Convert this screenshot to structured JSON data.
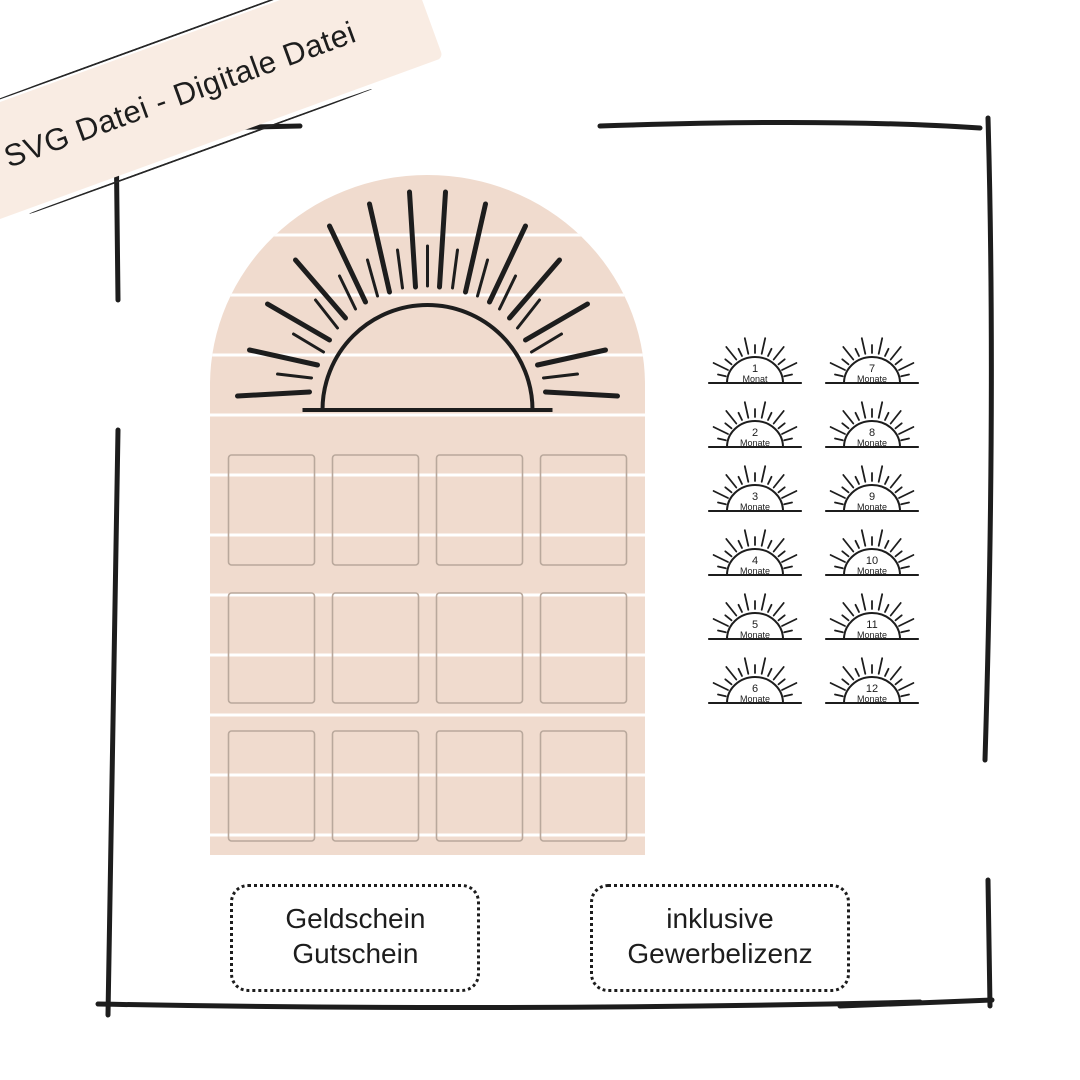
{
  "colors": {
    "bg": "#ffffff",
    "panel": "#f0dbce",
    "banner": "#f9ece3",
    "ink": "#1d1d1d",
    "slot_stroke": "#b9a89c"
  },
  "banner": {
    "text": "SVG Datei - Digitale Datei"
  },
  "pills": {
    "left_line1": "Geldschein",
    "left_line2": "Gutschein",
    "right_line1": "inklusive",
    "right_line2": "Gewerbelizenz"
  },
  "tokens": [
    {
      "num": "1",
      "label": "Monat"
    },
    {
      "num": "7",
      "label": "Monate"
    },
    {
      "num": "2",
      "label": "Monate"
    },
    {
      "num": "8",
      "label": "Monate"
    },
    {
      "num": "3",
      "label": "Monate"
    },
    {
      "num": "9",
      "label": "Monate"
    },
    {
      "num": "4",
      "label": "Monate"
    },
    {
      "num": "10",
      "label": "Monate"
    },
    {
      "num": "5",
      "label": "Monate"
    },
    {
      "num": "11",
      "label": "Monate"
    },
    {
      "num": "6",
      "label": "Monate"
    },
    {
      "num": "12",
      "label": "Monate"
    }
  ],
  "board": {
    "slot_rows": 3,
    "slot_cols": 4
  }
}
